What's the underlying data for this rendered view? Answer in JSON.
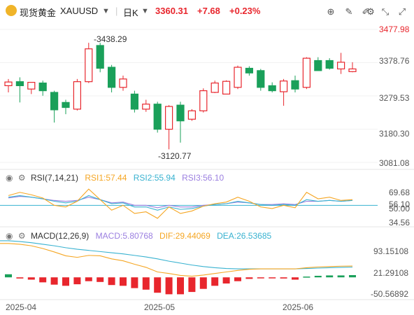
{
  "header": {
    "name": "现货黄金",
    "symbol": "XAUUSD",
    "period": "日K",
    "price": "3360.31",
    "change": "+7.68",
    "change_pct": "+0.23%",
    "up_color": "#e8262d",
    "down_color": "#1aa05a",
    "tools": [
      "target-icon",
      "pencil-icon",
      "draw-icon",
      "settings-icon",
      "compress-icon",
      "expand-icon"
    ]
  },
  "main_axis": {
    "ticks": [
      "3477.98",
      "3378.76",
      "3279.53",
      "3180.30",
      "3081.08"
    ],
    "min": 3081.08,
    "max": 3477.98,
    "high_label": "3438.29",
    "low_label": "3120.77"
  },
  "rsi": {
    "title": "RSI(7,14,21)",
    "rsi1": "RSI1:57.44",
    "rsi2": "RSI2:55.94",
    "rsi3": "RSI3:56.10",
    "ticks": [
      "69.68",
      "50.00",
      "34.56"
    ],
    "overlap_label": "56.10",
    "colors": {
      "rsi1": "#f5a623",
      "rsi2": "#38b2d0",
      "rsi3": "#9b7fe0"
    }
  },
  "macd": {
    "title": "MACD(12,26,9)",
    "macd_label": "MACD:5.80768",
    "dif_label": "DIF:29.44069",
    "dea_label": "DEA:26.53685",
    "ticks": [
      "93.15108",
      "21.29108",
      "-50.56892"
    ],
    "colors": {
      "macd": "#9b7fe0",
      "dif": "#f5a623",
      "dea": "#38b2d0"
    }
  },
  "x_axis": {
    "labels": [
      "2025-04",
      "2025-05",
      "2025-06"
    ]
  },
  "chart_data": {
    "type": "candlestick",
    "candles": [
      {
        "o": 3310,
        "h": 3330,
        "l": 3290,
        "c": 3321
      },
      {
        "o": 3322,
        "h": 3335,
        "l": 3260,
        "c": 3310
      },
      {
        "o": 3300,
        "h": 3320,
        "l": 3285,
        "c": 3320
      },
      {
        "o": 3318,
        "h": 3325,
        "l": 3280,
        "c": 3295
      },
      {
        "o": 3290,
        "h": 3295,
        "l": 3200,
        "c": 3238
      },
      {
        "o": 3260,
        "h": 3268,
        "l": 3225,
        "c": 3245
      },
      {
        "o": 3240,
        "h": 3330,
        "l": 3236,
        "c": 3322
      },
      {
        "o": 3322,
        "h": 3438,
        "l": 3318,
        "c": 3420
      },
      {
        "o": 3430,
        "h": 3438,
        "l": 3350,
        "c": 3362
      },
      {
        "o": 3365,
        "h": 3372,
        "l": 3290,
        "c": 3305
      },
      {
        "o": 3305,
        "h": 3340,
        "l": 3295,
        "c": 3330
      },
      {
        "o": 3285,
        "h": 3295,
        "l": 3230,
        "c": 3240
      },
      {
        "o": 3240,
        "h": 3268,
        "l": 3232,
        "c": 3255
      },
      {
        "o": 3255,
        "h": 3262,
        "l": 3170,
        "c": 3180
      },
      {
        "o": 3180,
        "h": 3252,
        "l": 3120,
        "c": 3248
      },
      {
        "o": 3252,
        "h": 3262,
        "l": 3140,
        "c": 3205
      },
      {
        "o": 3210,
        "h": 3240,
        "l": 3205,
        "c": 3235
      },
      {
        "o": 3235,
        "h": 3302,
        "l": 3230,
        "c": 3295
      },
      {
        "o": 3290,
        "h": 3325,
        "l": 3288,
        "c": 3318
      },
      {
        "o": 3285,
        "h": 3326,
        "l": 3285,
        "c": 3323
      },
      {
        "o": 3305,
        "h": 3370,
        "l": 3300,
        "c": 3365
      },
      {
        "o": 3362,
        "h": 3368,
        "l": 3340,
        "c": 3348
      },
      {
        "o": 3355,
        "h": 3360,
        "l": 3295,
        "c": 3305
      },
      {
        "o": 3310,
        "h": 3320,
        "l": 3290,
        "c": 3295
      },
      {
        "o": 3292,
        "h": 3330,
        "l": 3250,
        "c": 3324
      },
      {
        "o": 3325,
        "h": 3340,
        "l": 3290,
        "c": 3300
      },
      {
        "o": 3305,
        "h": 3395,
        "l": 3300,
        "c": 3392
      },
      {
        "o": 3385,
        "h": 3395,
        "l": 3355,
        "c": 3355
      },
      {
        "o": 3385,
        "h": 3392,
        "l": 3358,
        "c": 3362
      },
      {
        "o": 3360,
        "h": 3408,
        "l": 3345,
        "c": 3380
      },
      {
        "o": 3352,
        "h": 3380,
        "l": 3350,
        "c": 3360
      }
    ],
    "rsi1": [
      62,
      66,
      63,
      59,
      50,
      48,
      55,
      70,
      57,
      44,
      50,
      40,
      42,
      34,
      48,
      40,
      43,
      49,
      52,
      54,
      60,
      55,
      48,
      46,
      50,
      47,
      66,
      58,
      60,
      56,
      57
    ],
    "rsi2": [
      60,
      62,
      60,
      58,
      55,
      53,
      55,
      62,
      57,
      52,
      53,
      48,
      48,
      44,
      48,
      45,
      46,
      49,
      51,
      52,
      55,
      53,
      51,
      50,
      51,
      50,
      57,
      55,
      56,
      55,
      56
    ],
    "rsi3": [
      59,
      61,
      60,
      58,
      56,
      55,
      56,
      60,
      57,
      53,
      54,
      50,
      50,
      47,
      50,
      48,
      48,
      50,
      51,
      52,
      54,
      53,
      51,
      51,
      52,
      51,
      55,
      55,
      56,
      55,
      56
    ],
    "rsi_range": [
      27,
      77
    ],
    "dif": [
      88,
      86,
      82,
      75,
      66,
      56,
      52,
      57,
      56,
      48,
      43,
      34,
      26,
      14,
      10,
      5,
      3,
      6,
      10,
      14,
      18,
      21,
      22,
      22,
      22,
      22,
      25,
      27,
      28,
      29,
      29.4
    ],
    "dea": [
      95,
      93,
      90,
      86,
      82,
      77,
      73,
      70,
      67,
      64,
      61,
      57,
      53,
      48,
      42,
      37,
      32,
      28,
      25,
      23,
      22,
      22,
      22,
      22,
      22,
      22,
      23,
      24,
      25,
      26,
      26.5
    ],
    "macd_hist": [
      8,
      -3,
      -6,
      -13,
      -19,
      -22,
      -18,
      -10,
      -12,
      -20,
      -22,
      -28,
      -32,
      -40,
      -44,
      -44,
      -38,
      -30,
      -22,
      -16,
      -10,
      -4,
      -1,
      -2,
      -3,
      -6,
      2,
      4,
      5,
      5,
      5.8
    ],
    "macd_range": [
      -50.56892,
      93.15108
    ]
  }
}
